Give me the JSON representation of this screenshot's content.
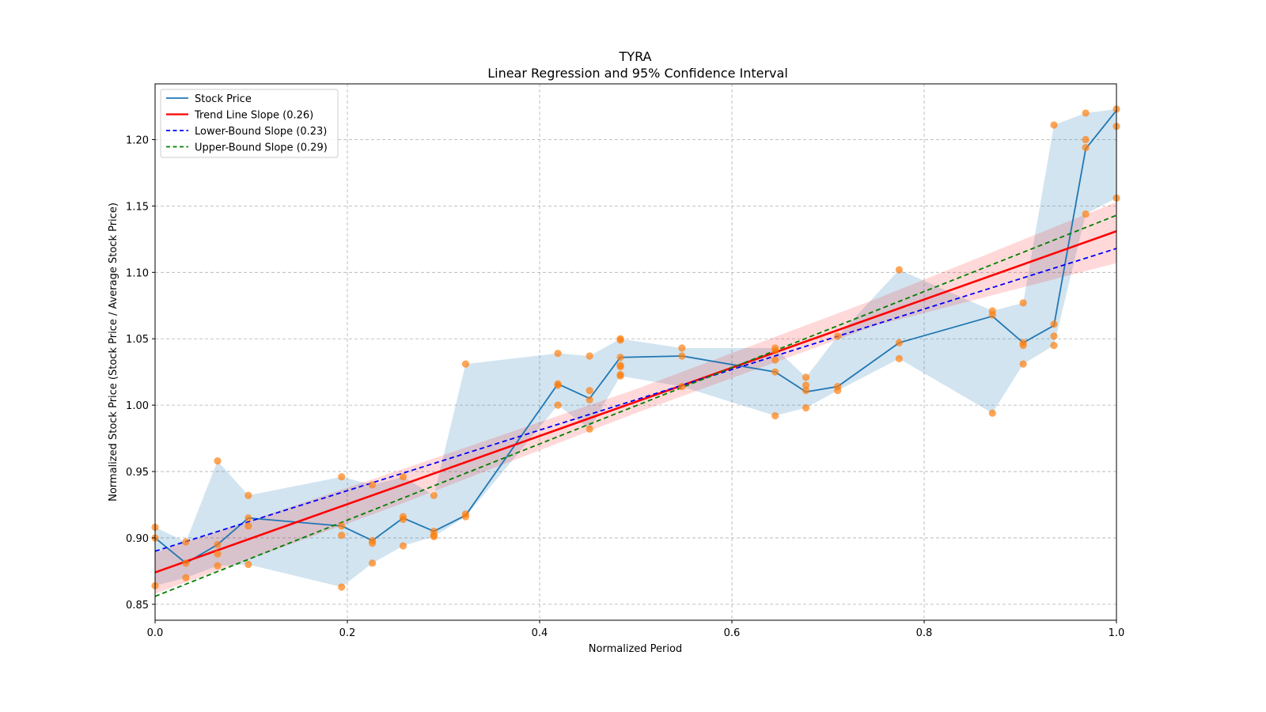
{
  "chart_data": {
    "type": "line",
    "title": "TYRA",
    "subtitle": "Linear Regression and 95% Confidence Interval",
    "xlabel": "Normalized Period",
    "ylabel": "Normalized Stock Price (Stock Price / Average Stock Price)",
    "xlim": [
      0.0,
      1.0
    ],
    "ylim": [
      0.838,
      1.242
    ],
    "xticks": [
      0.0,
      0.2,
      0.4,
      0.6,
      0.8,
      1.0
    ],
    "xtick_labels": [
      "0.0",
      "0.2",
      "0.4",
      "0.6",
      "0.8",
      "1.0"
    ],
    "yticks": [
      0.85,
      0.9,
      0.95,
      1.0,
      1.05,
      1.1,
      1.15,
      1.2
    ],
    "ytick_labels": [
      "0.85",
      "0.90",
      "0.95",
      "1.00",
      "1.05",
      "1.10",
      "1.15",
      "1.20"
    ],
    "grid": true,
    "legend_position": "top-left",
    "legend": [
      {
        "label": "Stock Price",
        "color": "#1f77b4",
        "style": "solid"
      },
      {
        "label": "Trend Line Slope (0.26)",
        "color": "#ff0000",
        "style": "solid"
      },
      {
        "label": "Lower-Bound Slope (0.23)",
        "color": "#0000ff",
        "style": "dashed"
      },
      {
        "label": "Upper-Bound Slope (0.29)",
        "color": "#008000",
        "style": "dashed"
      }
    ],
    "series": [
      {
        "name": "Stock Price",
        "color": "#1f77b4",
        "x": [
          0.0,
          0.032,
          0.065,
          0.097,
          0.194,
          0.226,
          0.258,
          0.29,
          0.323,
          0.419,
          0.452,
          0.484,
          0.548,
          0.645,
          0.677,
          0.71,
          0.774,
          0.871,
          0.903,
          0.935,
          0.968,
          1.0
        ],
        "y": [
          0.9,
          0.881,
          0.895,
          0.915,
          0.909,
          0.898,
          0.915,
          0.905,
          0.917,
          1.016,
          1.005,
          1.036,
          1.037,
          1.025,
          1.01,
          1.014,
          1.047,
          1.067,
          1.047,
          1.06,
          1.193,
          1.222
        ]
      },
      {
        "name": "Daily Prices",
        "color": "#ff7f0e",
        "type": "scatter",
        "points": [
          [
            0.0,
            0.908
          ],
          [
            0.0,
            0.9
          ],
          [
            0.0,
            0.864
          ],
          [
            0.032,
            0.897
          ],
          [
            0.032,
            0.881
          ],
          [
            0.032,
            0.87
          ],
          [
            0.065,
            0.958
          ],
          [
            0.065,
            0.895
          ],
          [
            0.065,
            0.888
          ],
          [
            0.065,
            0.879
          ],
          [
            0.097,
            0.932
          ],
          [
            0.097,
            0.915
          ],
          [
            0.097,
            0.909
          ],
          [
            0.097,
            0.88
          ],
          [
            0.194,
            0.946
          ],
          [
            0.194,
            0.909
          ],
          [
            0.194,
            0.902
          ],
          [
            0.194,
            0.863
          ],
          [
            0.226,
            0.94
          ],
          [
            0.226,
            0.898
          ],
          [
            0.226,
            0.896
          ],
          [
            0.226,
            0.881
          ],
          [
            0.258,
            0.946
          ],
          [
            0.258,
            0.916
          ],
          [
            0.258,
            0.914
          ],
          [
            0.258,
            0.894
          ],
          [
            0.29,
            0.932
          ],
          [
            0.29,
            0.905
          ],
          [
            0.29,
            0.902
          ],
          [
            0.29,
            0.901
          ],
          [
            0.323,
            1.031
          ],
          [
            0.323,
            0.918
          ],
          [
            0.323,
            0.916
          ],
          [
            0.419,
            1.039
          ],
          [
            0.419,
            1.016
          ],
          [
            0.419,
            1.015
          ],
          [
            0.419,
            1.0
          ],
          [
            0.452,
            1.037
          ],
          [
            0.452,
            1.011
          ],
          [
            0.452,
            1.004
          ],
          [
            0.452,
            0.982
          ],
          [
            0.484,
            1.05
          ],
          [
            0.484,
            1.049
          ],
          [
            0.484,
            1.036
          ],
          [
            0.484,
            1.03
          ],
          [
            0.484,
            1.029
          ],
          [
            0.484,
            1.023
          ],
          [
            0.484,
            1.022
          ],
          [
            0.548,
            1.043
          ],
          [
            0.548,
            1.037
          ],
          [
            0.548,
            1.014
          ],
          [
            0.645,
            1.043
          ],
          [
            0.645,
            1.041
          ],
          [
            0.645,
            1.034
          ],
          [
            0.645,
            1.025
          ],
          [
            0.645,
            0.992
          ],
          [
            0.677,
            1.021
          ],
          [
            0.677,
            1.015
          ],
          [
            0.677,
            1.011
          ],
          [
            0.677,
            0.998
          ],
          [
            0.71,
            1.052
          ],
          [
            0.71,
            1.014
          ],
          [
            0.71,
            1.011
          ],
          [
            0.774,
            1.102
          ],
          [
            0.774,
            1.047
          ],
          [
            0.774,
            1.035
          ],
          [
            0.871,
            1.071
          ],
          [
            0.871,
            1.068
          ],
          [
            0.871,
            0.994
          ],
          [
            0.903,
            1.077
          ],
          [
            0.903,
            1.047
          ],
          [
            0.903,
            1.045
          ],
          [
            0.903,
            1.031
          ],
          [
            0.935,
            1.211
          ],
          [
            0.935,
            1.061
          ],
          [
            0.935,
            1.052
          ],
          [
            0.935,
            1.045
          ],
          [
            0.968,
            1.22
          ],
          [
            0.968,
            1.2
          ],
          [
            0.968,
            1.194
          ],
          [
            0.968,
            1.144
          ],
          [
            1.0,
            1.223
          ],
          [
            1.0,
            1.21
          ],
          [
            1.0,
            1.156
          ]
        ]
      },
      {
        "name": "Trend Line Slope (0.26)",
        "color": "#ff0000",
        "x": [
          0.0,
          1.0
        ],
        "y": [
          0.874,
          1.131
        ]
      },
      {
        "name": "Lower-Bound Slope (0.23)",
        "color": "#0000ff",
        "x": [
          0.0,
          1.0
        ],
        "y": [
          0.89,
          1.118
        ]
      },
      {
        "name": "Upper-Bound Slope (0.29)",
        "color": "#008000",
        "x": [
          0.0,
          1.0
        ],
        "y": [
          0.856,
          1.143
        ]
      }
    ],
    "trend_confidence_band": {
      "color": "#ff9999",
      "x": [
        0.0,
        0.25,
        0.5,
        0.75,
        1.0
      ],
      "lower": [
        0.858,
        0.924,
        0.994,
        1.06,
        1.107
      ],
      "upper": [
        0.889,
        0.95,
        1.012,
        1.08,
        1.153
      ]
    },
    "price_range_band": {
      "color": "#a6c8e0",
      "description": "min-max envelope of daily prices per period"
    }
  }
}
